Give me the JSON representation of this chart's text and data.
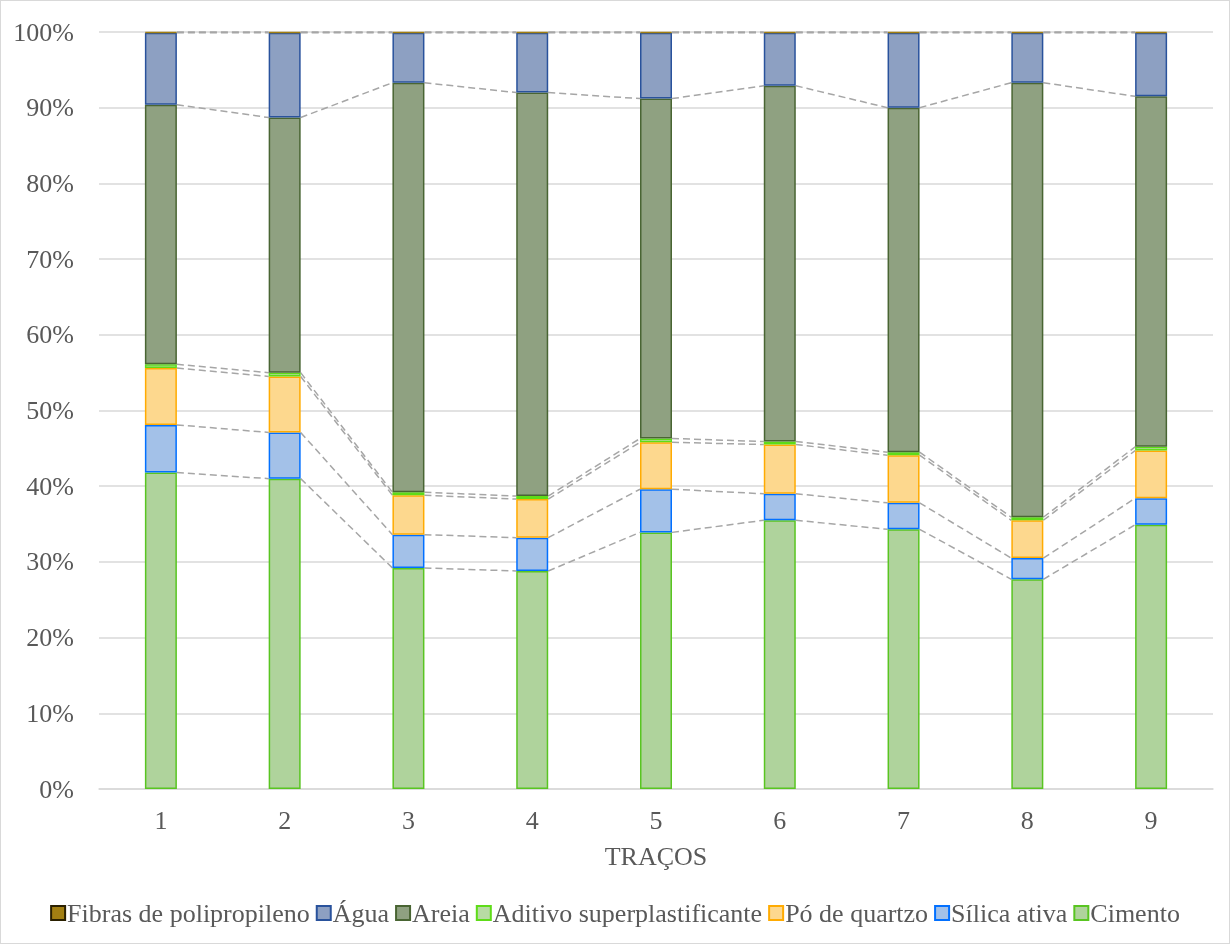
{
  "chart_data": {
    "type": "bar",
    "stacked": true,
    "xlabel": "TRAÇOS",
    "categories": [
      "1",
      "2",
      "3",
      "4",
      "5",
      "6",
      "7",
      "8",
      "9"
    ],
    "series": [
      {
        "name": "Cimento",
        "color": "#afd39c",
        "values": [
          41.8,
          41.0,
          29.2,
          28.8,
          33.9,
          35.5,
          34.3,
          27.7,
          34.9
        ]
      },
      {
        "name": "Sílica ativa",
        "color": "#a3c1e8",
        "values": [
          6.3,
          6.1,
          4.4,
          4.4,
          5.7,
          3.5,
          3.5,
          2.8,
          3.5
        ]
      },
      {
        "name": "Pó de quartzo",
        "color": "#fdd88e",
        "values": [
          7.5,
          7.4,
          5.2,
          5.1,
          6.2,
          6.5,
          6.3,
          5.0,
          6.3
        ]
      },
      {
        "name": "Aditivo superplastificante",
        "color": "#b7dba3",
        "values": [
          0.5,
          0.5,
          0.4,
          0.4,
          0.5,
          0.4,
          0.4,
          0.4,
          0.5
        ]
      },
      {
        "name": "Areia",
        "color": "#8fa181",
        "values": [
          34.3,
          33.7,
          54.1,
          53.3,
          44.9,
          47.0,
          45.5,
          57.4,
          46.3
        ]
      },
      {
        "name": "Água",
        "color": "#8da0c2",
        "values": [
          9.5,
          11.2,
          6.6,
          7.9,
          8.7,
          7.0,
          9.9,
          6.6,
          8.4
        ]
      },
      {
        "name": "Fibras de polipropileno",
        "color": "#a27f12",
        "values": [
          0.1,
          0.1,
          0.1,
          0.1,
          0.1,
          0.1,
          0.1,
          0.1,
          0.1
        ]
      }
    ],
    "ylim": [
      0,
      100
    ],
    "yticks": [
      {
        "value": 0,
        "label": "0%"
      },
      {
        "value": 10,
        "label": "10%"
      },
      {
        "value": 20,
        "label": "20%"
      },
      {
        "value": 30,
        "label": "30%"
      },
      {
        "value": 40,
        "label": "40%"
      },
      {
        "value": 50,
        "label": "50%"
      },
      {
        "value": 60,
        "label": "60%"
      },
      {
        "value": 70,
        "label": "70%"
      },
      {
        "value": 80,
        "label": "80%"
      },
      {
        "value": 90,
        "label": "90%"
      },
      {
        "value": 100,
        "label": "100%"
      }
    ],
    "grid": "y",
    "legend": "bottom"
  }
}
